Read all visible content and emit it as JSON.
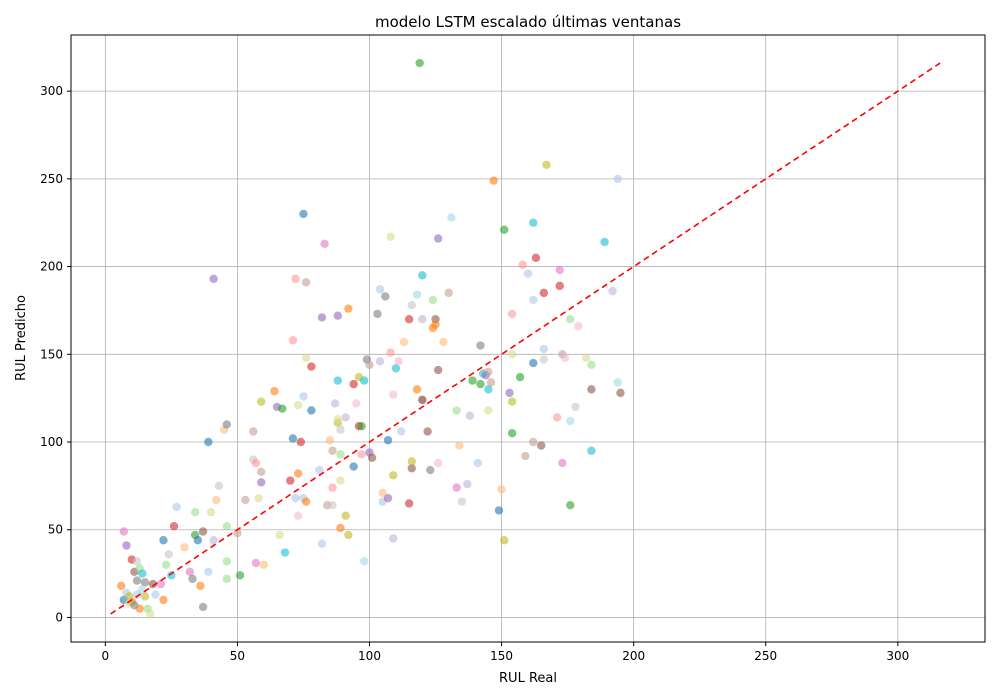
{
  "chart_data": {
    "type": "scatter",
    "title": "modelo LSTM escalado últimas ventanas",
    "xlabel": "RUL Real",
    "ylabel": "RUL Predicho",
    "xlim": [
      -13,
      333
    ],
    "ylim": [
      -14,
      332
    ],
    "xticks": [
      0,
      50,
      100,
      150,
      200,
      250,
      300
    ],
    "yticks": [
      0,
      50,
      100,
      150,
      200,
      250,
      300
    ],
    "grid": true,
    "reference_line": {
      "x": [
        2,
        316
      ],
      "y": [
        2,
        316
      ],
      "color": "#ff0000",
      "style": "dashed"
    },
    "colors": [
      "#1f77b4",
      "#ff7f0e",
      "#2ca02c",
      "#d62728",
      "#9467bd",
      "#8c564b",
      "#e377c2",
      "#7f7f7f",
      "#bcbd22",
      "#17becf",
      "#aec7e8",
      "#ffbb78",
      "#98df8a",
      "#ff9896",
      "#c5b0d5",
      "#c49c94",
      "#f7b6d2",
      "#c7c7c7",
      "#dbdb8d",
      "#9edae5"
    ],
    "points": [
      [
        7,
        10,
        0
      ],
      [
        10,
        9,
        1
      ],
      [
        12,
        21,
        7
      ],
      [
        15,
        12,
        8
      ],
      [
        8,
        41,
        4
      ],
      [
        7,
        49,
        6
      ],
      [
        6,
        18,
        1
      ],
      [
        8,
        14,
        10
      ],
      [
        10,
        33,
        3
      ],
      [
        11,
        26,
        5
      ],
      [
        12,
        32,
        17
      ],
      [
        13,
        28,
        12
      ],
      [
        14,
        25,
        9
      ],
      [
        15,
        20,
        7
      ],
      [
        16,
        5,
        12
      ],
      [
        17,
        2,
        18
      ],
      [
        18,
        19,
        5
      ],
      [
        19,
        13,
        10
      ],
      [
        21,
        19,
        6
      ],
      [
        22,
        44,
        0
      ],
      [
        22,
        10,
        1
      ],
      [
        23,
        30,
        12
      ],
      [
        24,
        36,
        17
      ],
      [
        25,
        24,
        9
      ],
      [
        26,
        52,
        3
      ],
      [
        27,
        63,
        10
      ],
      [
        30,
        40,
        11
      ],
      [
        32,
        26,
        6
      ],
      [
        33,
        22,
        7
      ],
      [
        34,
        60,
        12
      ],
      [
        34,
        47,
        2
      ],
      [
        35,
        44,
        0
      ],
      [
        36,
        18,
        1
      ],
      [
        37,
        6,
        7
      ],
      [
        37,
        49,
        5
      ],
      [
        39,
        100,
        0
      ],
      [
        39,
        26,
        10
      ],
      [
        40,
        60,
        18
      ],
      [
        41,
        193,
        4
      ],
      [
        41,
        44,
        14
      ],
      [
        42,
        67,
        11
      ],
      [
        43,
        75,
        17
      ],
      [
        45,
        107,
        11
      ],
      [
        46,
        110,
        7
      ],
      [
        46,
        52,
        12
      ],
      [
        46,
        32,
        12
      ],
      [
        46,
        22,
        12
      ],
      [
        50,
        48,
        15
      ],
      [
        51,
        24,
        2
      ],
      [
        53,
        67,
        15
      ],
      [
        56,
        90,
        17
      ],
      [
        56,
        106,
        15
      ],
      [
        57,
        88,
        13
      ],
      [
        57,
        31,
        6
      ],
      [
        58,
        68,
        18
      ],
      [
        59,
        123,
        8
      ],
      [
        59,
        77,
        4
      ],
      [
        59,
        83,
        15
      ],
      [
        60,
        30,
        11
      ],
      [
        64,
        129,
        1
      ],
      [
        65,
        120,
        4
      ],
      [
        66,
        47,
        18
      ],
      [
        67,
        119,
        2
      ],
      [
        68,
        37,
        9
      ],
      [
        70,
        78,
        3
      ],
      [
        71,
        158,
        13
      ],
      [
        71,
        102,
        0
      ],
      [
        72,
        193,
        13
      ],
      [
        72,
        68,
        10
      ],
      [
        73,
        58,
        16
      ],
      [
        73,
        121,
        18
      ],
      [
        73,
        82,
        1
      ],
      [
        74,
        100,
        3
      ],
      [
        75,
        230,
        0
      ],
      [
        75,
        126,
        10
      ],
      [
        75,
        68,
        10
      ],
      [
        76,
        148,
        18
      ],
      [
        76,
        66,
        1
      ],
      [
        76,
        191,
        15
      ],
      [
        78,
        143,
        3
      ],
      [
        78,
        118,
        0
      ],
      [
        81,
        84,
        10
      ],
      [
        82,
        42,
        10
      ],
      [
        82,
        171,
        4
      ],
      [
        83,
        213,
        6
      ],
      [
        84,
        64,
        15
      ],
      [
        85,
        101,
        11
      ],
      [
        86,
        95,
        15
      ],
      [
        86,
        74,
        13
      ],
      [
        86,
        64,
        17
      ],
      [
        87,
        122,
        14
      ],
      [
        88,
        172,
        4
      ],
      [
        88,
        135,
        9
      ],
      [
        88,
        111,
        8
      ],
      [
        88,
        113,
        18
      ],
      [
        89,
        107,
        17
      ],
      [
        89,
        93,
        12
      ],
      [
        89,
        78,
        18
      ],
      [
        89,
        51,
        1
      ],
      [
        91,
        114,
        14
      ],
      [
        91,
        58,
        8
      ],
      [
        92,
        47,
        8
      ],
      [
        92,
        176,
        1
      ],
      [
        94,
        133,
        3
      ],
      [
        94,
        86,
        0
      ],
      [
        95,
        122,
        16
      ],
      [
        96,
        137,
        8
      ],
      [
        96,
        109,
        3
      ],
      [
        97,
        93,
        13
      ],
      [
        97,
        109,
        2
      ],
      [
        98,
        135,
        9
      ],
      [
        98,
        32,
        19
      ],
      [
        99,
        147,
        7
      ],
      [
        100,
        144,
        15
      ],
      [
        100,
        94,
        4
      ],
      [
        101,
        91,
        5
      ],
      [
        103,
        173,
        7
      ],
      [
        104,
        187,
        10
      ],
      [
        104,
        146,
        14
      ],
      [
        105,
        71,
        11
      ],
      [
        105,
        66,
        10
      ],
      [
        106,
        183,
        7
      ],
      [
        107,
        101,
        0
      ],
      [
        107,
        68,
        4
      ],
      [
        108,
        217,
        18
      ],
      [
        108,
        151,
        13
      ],
      [
        109,
        127,
        16
      ],
      [
        109,
        81,
        8
      ],
      [
        109,
        45,
        14
      ],
      [
        110,
        142,
        9
      ],
      [
        111,
        146,
        16
      ],
      [
        112,
        106,
        10
      ],
      [
        113,
        157,
        11
      ],
      [
        115,
        65,
        3
      ],
      [
        115,
        170,
        3
      ],
      [
        116,
        178,
        17
      ],
      [
        116,
        85,
        5
      ],
      [
        116,
        89,
        8
      ],
      [
        118,
        184,
        19
      ],
      [
        118,
        130,
        1
      ],
      [
        119,
        316,
        2
      ],
      [
        120,
        124,
        15
      ],
      [
        120,
        170,
        14
      ],
      [
        120,
        124,
        5
      ],
      [
        120,
        195,
        9
      ],
      [
        122,
        106,
        5
      ],
      [
        123,
        84,
        7
      ],
      [
        124,
        181,
        12
      ],
      [
        124,
        165,
        1
      ],
      [
        125,
        170,
        5
      ],
      [
        125,
        167,
        1
      ],
      [
        126,
        216,
        4
      ],
      [
        126,
        141,
        5
      ],
      [
        126,
        88,
        16
      ],
      [
        128,
        157,
        11
      ],
      [
        130,
        185,
        15
      ],
      [
        131,
        228,
        19
      ],
      [
        133,
        118,
        12
      ],
      [
        133,
        74,
        6
      ],
      [
        134,
        98,
        11
      ],
      [
        135,
        66,
        17
      ],
      [
        137,
        76,
        14
      ],
      [
        138,
        115,
        14
      ],
      [
        139,
        135,
        2
      ],
      [
        141,
        88,
        10
      ],
      [
        142,
        133,
        2
      ],
      [
        142,
        155,
        7
      ],
      [
        143,
        139,
        9
      ],
      [
        144,
        138,
        4
      ],
      [
        145,
        140,
        15
      ],
      [
        145,
        118,
        18
      ],
      [
        145,
        130,
        9
      ],
      [
        146,
        134,
        15
      ],
      [
        147,
        249,
        1
      ],
      [
        149,
        61,
        0
      ],
      [
        150,
        73,
        11
      ],
      [
        151,
        221,
        2
      ],
      [
        151,
        44,
        8
      ],
      [
        153,
        128,
        4
      ],
      [
        154,
        173,
        13
      ],
      [
        154,
        123,
        8
      ],
      [
        154,
        105,
        2
      ],
      [
        154,
        150,
        18
      ],
      [
        157,
        137,
        2
      ],
      [
        158,
        201,
        13
      ],
      [
        159,
        92,
        15
      ],
      [
        160,
        196,
        10
      ],
      [
        162,
        225,
        9
      ],
      [
        162,
        100,
        15
      ],
      [
        162,
        145,
        0
      ],
      [
        162,
        181,
        10
      ],
      [
        163,
        205,
        3
      ],
      [
        165,
        98,
        5
      ],
      [
        166,
        147,
        17
      ],
      [
        166,
        153,
        10
      ],
      [
        166,
        185,
        3
      ],
      [
        167,
        258,
        8
      ],
      [
        171,
        114,
        13
      ],
      [
        172,
        198,
        6
      ],
      [
        172,
        189,
        3
      ],
      [
        173,
        150,
        15
      ],
      [
        173,
        88,
        6
      ],
      [
        174,
        148,
        16
      ],
      [
        176,
        112,
        19
      ],
      [
        176,
        170,
        12
      ],
      [
        176,
        64,
        2
      ],
      [
        178,
        120,
        17
      ],
      [
        179,
        166,
        16
      ],
      [
        182,
        148,
        18
      ],
      [
        184,
        95,
        9
      ],
      [
        184,
        130,
        5
      ],
      [
        184,
        144,
        12
      ],
      [
        189,
        214,
        9
      ],
      [
        192,
        186,
        14
      ],
      [
        194,
        250,
        10
      ],
      [
        194,
        134,
        19
      ],
      [
        195,
        128,
        5
      ],
      [
        9,
        12,
        8
      ],
      [
        12,
        13,
        10
      ],
      [
        14,
        16,
        19
      ],
      [
        9,
        8,
        18
      ],
      [
        11,
        7,
        7
      ],
      [
        13,
        5,
        1
      ]
    ]
  }
}
